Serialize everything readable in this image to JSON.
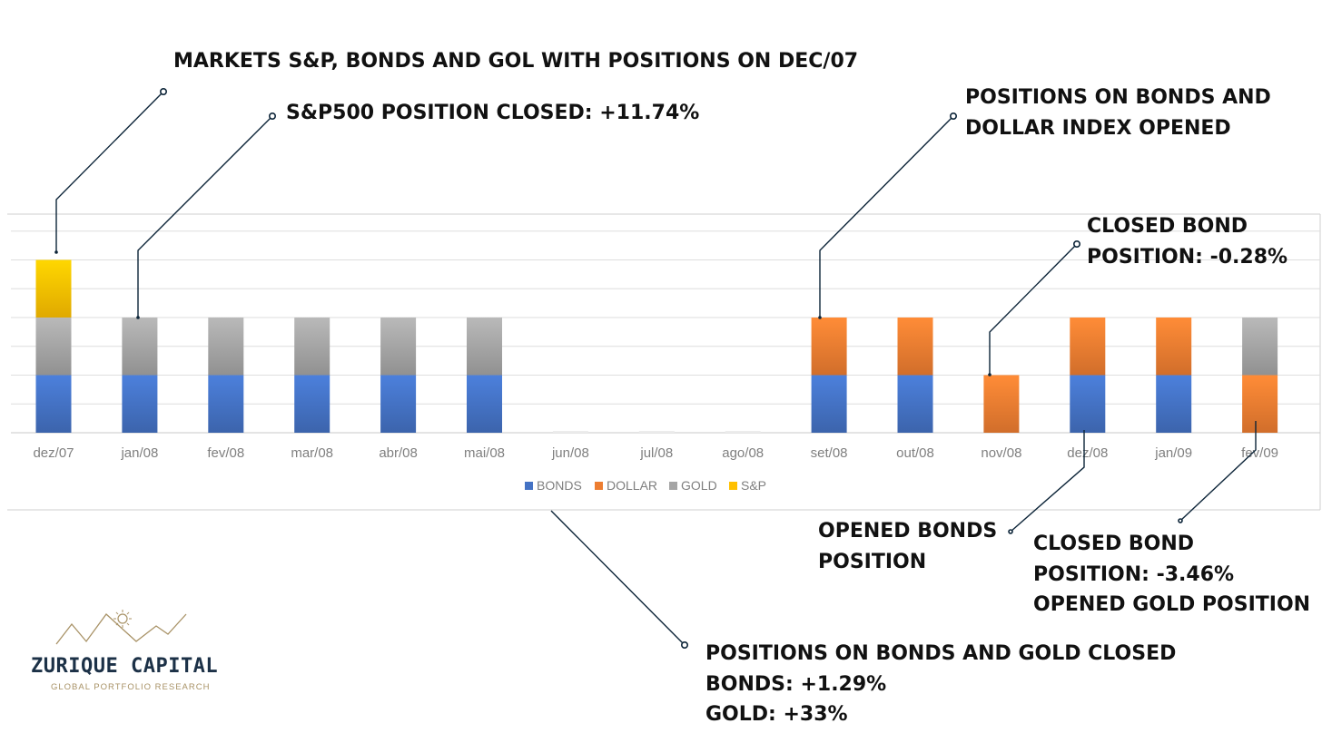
{
  "chart_data": {
    "type": "bar",
    "stacked": true,
    "categories": [
      "dez/07",
      "jan/08",
      "fev/08",
      "mar/08",
      "abr/08",
      "mai/08",
      "jun/08",
      "jul/08",
      "ago/08",
      "set/08",
      "out/08",
      "nov/08",
      "dez/08",
      "jan/09",
      "fev/09"
    ],
    "series": [
      {
        "name": "BONDS",
        "color": "#4472c4",
        "values": [
          1,
          1,
          1,
          1,
          1,
          1,
          0,
          0,
          0,
          1,
          1,
          0,
          1,
          1,
          0
        ]
      },
      {
        "name": "DOLLAR",
        "color": "#ed7d31",
        "values": [
          0,
          0,
          0,
          0,
          0,
          0,
          0,
          0,
          0,
          1,
          1,
          1,
          1,
          1,
          1
        ]
      },
      {
        "name": "GOLD",
        "color": "#a5a5a5",
        "values": [
          1,
          1,
          1,
          1,
          1,
          1,
          0,
          0,
          0,
          0,
          0,
          0,
          0,
          0,
          1
        ]
      },
      {
        "name": "S&P",
        "color": "#ffc000",
        "values": [
          1,
          0,
          0,
          0,
          0,
          0,
          0,
          0,
          0,
          0,
          0,
          0,
          0,
          0,
          0
        ]
      }
    ],
    "ylim": [
      0,
      3.5
    ],
    "grid": true,
    "legend_position": "bottom",
    "annotations": [
      {
        "id": "a1",
        "lines": [
          "MARKETS S&P, BONDS AND GOL WITH POSITIONS ON DEC/07"
        ],
        "category": "dez/07"
      },
      {
        "id": "a2",
        "lines": [
          "S&P500 POSITION CLOSED: +11.74%"
        ],
        "category": "jan/08"
      },
      {
        "id": "a3",
        "lines": [
          "POSITIONS ON BONDS AND",
          "DOLLAR INDEX OPENED"
        ],
        "category": "set/08"
      },
      {
        "id": "a4",
        "lines": [
          "CLOSED BOND",
          "POSITION: -0.28%"
        ],
        "category": "nov/08"
      },
      {
        "id": "a5",
        "lines": [
          "OPENED BONDS",
          "POSITION"
        ],
        "category": "dez/08"
      },
      {
        "id": "a6",
        "lines": [
          "CLOSED BOND",
          "POSITION: -3.46%",
          "OPENED GOLD POSITION"
        ],
        "category": "fev/09"
      },
      {
        "id": "a7",
        "lines": [
          "POSITIONS ON BONDS AND GOLD CLOSED",
          "BONDS: +1.29%",
          "GOLD: +33%"
        ],
        "category": "jun/08"
      }
    ]
  },
  "logo": {
    "name": "ZURIQUE CAPITAL",
    "tagline": "GLOBAL PORTFOLIO RESEARCH"
  }
}
